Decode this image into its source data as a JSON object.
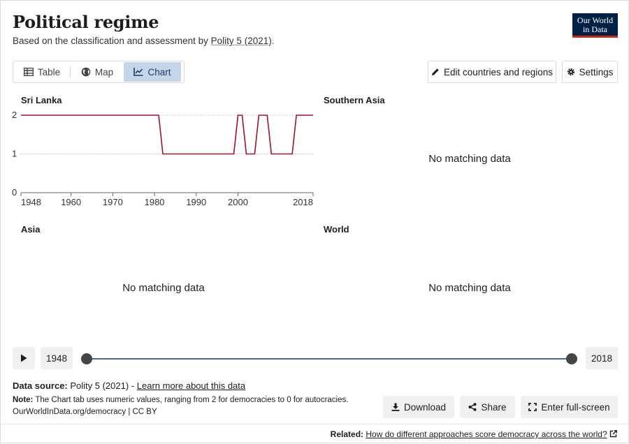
{
  "header": {
    "title": "Political regime",
    "subtitle_prefix": "Based on the classification and assessment by ",
    "subtitle_link": "Polity 5 (2021)",
    "subtitle_suffix": ".",
    "logo_line1": "Our World",
    "logo_line2": "in Data"
  },
  "tabs": [
    {
      "label": "Table",
      "icon": "table-icon"
    },
    {
      "label": "Map",
      "icon": "globe-icon"
    },
    {
      "label": "Chart",
      "icon": "line-chart-icon",
      "active": true
    }
  ],
  "toolbar": {
    "edit_label": "Edit countries and regions",
    "settings_label": "Settings"
  },
  "panels": {
    "southern_asia": {
      "title": "Southern Asia",
      "message": "No matching data"
    },
    "asia": {
      "title": "Asia",
      "message": "No matching data"
    },
    "world": {
      "title": "World",
      "message": "No matching data"
    }
  },
  "chart_data": {
    "type": "line",
    "title": "Sri Lanka",
    "series": [
      {
        "color": "#a2112c",
        "x": [
          1948,
          1981,
          1982,
          1999,
          2000,
          2001,
          2002,
          2004,
          2005,
          2007,
          2008,
          2013,
          2014,
          2018
        ],
        "y": [
          2,
          2,
          1,
          1,
          2,
          2,
          1,
          1,
          2,
          2,
          1,
          1,
          2,
          2
        ]
      }
    ],
    "xlim": [
      1948,
      2018
    ],
    "ylim": [
      0,
      2
    ],
    "xticks": [
      1948,
      1960,
      1970,
      1980,
      1990,
      2000,
      2018
    ],
    "yticks": [
      0,
      1,
      2
    ],
    "grid": "horizontal dotted"
  },
  "timeline": {
    "start_label": "1948",
    "end_label": "2018",
    "start_year": 1948,
    "end_year": 2018
  },
  "footer": {
    "source_label": "Data source:",
    "source_value": " Polity 5 (2021) - ",
    "source_link": "Learn more about this data",
    "note_label": "Note:",
    "note_text": " The Chart tab uses numeric values, ranging from 2 for democracies to 0 for autocracies.",
    "url_line": "OurWorldInData.org/democracy | CC BY",
    "download_label": "Download",
    "share_label": "Share",
    "fullscreen_label": "Enter full-screen"
  },
  "related": {
    "label": "Related:",
    "link": "How do different approaches score democracy across the world?"
  },
  "colors": {
    "line": "#a2112c",
    "timeline": "#4a6a8f",
    "logo_bg": "#002147",
    "logo_accent": "#ce261e",
    "tab_active": "#c5d5ea"
  }
}
